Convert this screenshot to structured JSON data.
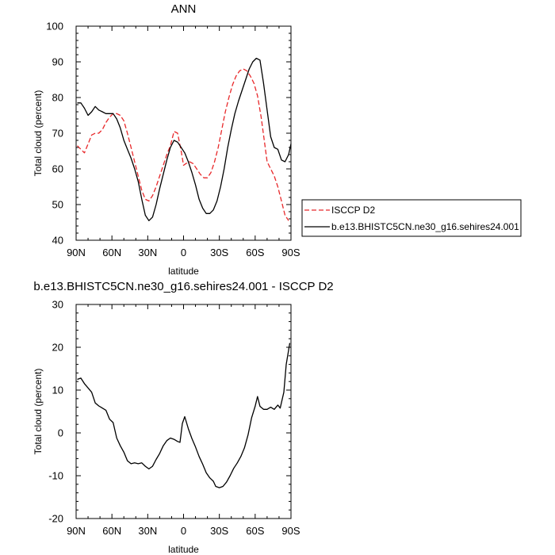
{
  "chart_data": [
    {
      "type": "line",
      "title": "ANN",
      "xlabel": "latitude",
      "ylabel": "Total cloud (percent)",
      "xlim": [
        90,
        -90
      ],
      "ylim": [
        40,
        100
      ],
      "x_ticks": [
        {
          "value": 90,
          "label": "90N"
        },
        {
          "value": 60,
          "label": "60N"
        },
        {
          "value": 30,
          "label": "30N"
        },
        {
          "value": 0,
          "label": "0"
        },
        {
          "value": -30,
          "label": "30S"
        },
        {
          "value": -60,
          "label": "60S"
        },
        {
          "value": -90,
          "label": "90S"
        }
      ],
      "y_ticks": [
        40,
        50,
        60,
        70,
        80,
        90,
        100
      ],
      "legend_position": "right",
      "series": [
        {
          "name": "ISCCP D2",
          "color": "#e8282a",
          "dash": "dashed",
          "points": [
            [
              89,
              66.5
            ],
            [
              86,
              65.5
            ],
            [
              83,
              64.5
            ],
            [
              80,
              67
            ],
            [
              77,
              69.5
            ],
            [
              74,
              70
            ],
            [
              71,
              70
            ],
            [
              68,
              71
            ],
            [
              65,
              73
            ],
            [
              62,
              74.5
            ],
            [
              59,
              75.5
            ],
            [
              56,
              75.5
            ],
            [
              53,
              75
            ],
            [
              50,
              73.5
            ],
            [
              47,
              70
            ],
            [
              44,
              66
            ],
            [
              41,
              62
            ],
            [
              38,
              58
            ],
            [
              35,
              54
            ],
            [
              32,
              51.5
            ],
            [
              29,
              51
            ],
            [
              26,
              52.5
            ],
            [
              23,
              55
            ],
            [
              20,
              58
            ],
            [
              17,
              61
            ],
            [
              14,
              64
            ],
            [
              11,
              66.5
            ],
            [
              8,
              70.5
            ],
            [
              5,
              70
            ],
            [
              2,
              65
            ],
            [
              0,
              61
            ],
            [
              -2,
              61.5
            ],
            [
              -5,
              62
            ],
            [
              -8,
              61.5
            ],
            [
              -11,
              60
            ],
            [
              -14,
              58.5
            ],
            [
              -17,
              57.5
            ],
            [
              -20,
              57.5
            ],
            [
              -23,
              59
            ],
            [
              -26,
              62
            ],
            [
              -29,
              66
            ],
            [
              -32,
              71
            ],
            [
              -35,
              76
            ],
            [
              -38,
              80
            ],
            [
              -41,
              83.5
            ],
            [
              -44,
              86
            ],
            [
              -47,
              87.5
            ],
            [
              -50,
              88
            ],
            [
              -53,
              87.5
            ],
            [
              -56,
              86
            ],
            [
              -59,
              84
            ],
            [
              -62,
              80.5
            ],
            [
              -65,
              74.5
            ],
            [
              -68,
              67
            ],
            [
              -70,
              62
            ],
            [
              -73,
              60
            ],
            [
              -76,
              58
            ],
            [
              -79,
              55
            ],
            [
              -82,
              51
            ],
            [
              -85,
              47
            ],
            [
              -88,
              45.5
            ]
          ]
        },
        {
          "name": "b.e13.BHISTC5CN.ne30_g16.sehires24.001",
          "color": "#000000",
          "dash": "solid",
          "points": [
            [
              89,
              78.5
            ],
            [
              86,
              78.5
            ],
            [
              83,
              77
            ],
            [
              80,
              75
            ],
            [
              77,
              76
            ],
            [
              74,
              77.5
            ],
            [
              71,
              76.5
            ],
            [
              68,
              76
            ],
            [
              65,
              75.5
            ],
            [
              62,
              75.5
            ],
            [
              59,
              75.5
            ],
            [
              56,
              74
            ],
            [
              53,
              71.5
            ],
            [
              50,
              68
            ],
            [
              47,
              65.5
            ],
            [
              44,
              63
            ],
            [
              41,
              60
            ],
            [
              38,
              56.5
            ],
            [
              35,
              51.5
            ],
            [
              32,
              47
            ],
            [
              29,
              45.5
            ],
            [
              26,
              46.5
            ],
            [
              23,
              50
            ],
            [
              20,
              54.5
            ],
            [
              17,
              58.5
            ],
            [
              14,
              62.5
            ],
            [
              11,
              66
            ],
            [
              8,
              68
            ],
            [
              5,
              67.5
            ],
            [
              2,
              66
            ],
            [
              -1,
              64.5
            ],
            [
              -4,
              62
            ],
            [
              -7,
              59
            ],
            [
              -10,
              55.5
            ],
            [
              -13,
              51.5
            ],
            [
              -16,
              49
            ],
            [
              -19,
              47.5
            ],
            [
              -22,
              47.5
            ],
            [
              -25,
              48.5
            ],
            [
              -28,
              51
            ],
            [
              -31,
              55
            ],
            [
              -34,
              60
            ],
            [
              -37,
              66
            ],
            [
              -40,
              71
            ],
            [
              -43,
              75.5
            ],
            [
              -46,
              79
            ],
            [
              -49,
              82
            ],
            [
              -52,
              85
            ],
            [
              -55,
              88
            ],
            [
              -58,
              90
            ],
            [
              -61,
              91
            ],
            [
              -64,
              90.5
            ],
            [
              -67,
              84
            ],
            [
              -70,
              76.5
            ],
            [
              -73,
              69
            ],
            [
              -76,
              66
            ],
            [
              -79,
              65.5
            ],
            [
              -82,
              62.5
            ],
            [
              -85,
              62
            ],
            [
              -88,
              64
            ],
            [
              -90,
              67
            ]
          ]
        }
      ]
    },
    {
      "type": "line",
      "title": "b.e13.BHISTC5CN.ne30_g16.sehires24.001 - ISCCP D2",
      "xlabel": "latitude",
      "ylabel": "Total cloud (percent)",
      "xlim": [
        90,
        -90
      ],
      "ylim": [
        -20,
        30
      ],
      "x_ticks": [
        {
          "value": 90,
          "label": "90N"
        },
        {
          "value": 60,
          "label": "60N"
        },
        {
          "value": 30,
          "label": "30N"
        },
        {
          "value": 0,
          "label": "0"
        },
        {
          "value": -30,
          "label": "30S"
        },
        {
          "value": -60,
          "label": "60S"
        },
        {
          "value": -90,
          "label": "90S"
        }
      ],
      "y_ticks": [
        -20,
        -10,
        0,
        10,
        20,
        30
      ],
      "series": [
        {
          "color": "#000000",
          "dash": "solid",
          "points": [
            [
              89,
              12.5
            ],
            [
              86,
              12.8
            ],
            [
              83,
              11.5
            ],
            [
              80,
              10.5
            ],
            [
              77,
              9.5
            ],
            [
              74,
              7
            ],
            [
              71,
              6.3
            ],
            [
              68,
              5.8
            ],
            [
              65,
              5.3
            ],
            [
              62,
              3.2
            ],
            [
              59,
              2.4
            ],
            [
              56,
              -1.2
            ],
            [
              53,
              -3
            ],
            [
              50,
              -4.5
            ],
            [
              47,
              -6.5
            ],
            [
              44,
              -7.2
            ],
            [
              41,
              -7.0
            ],
            [
              38,
              -7.2
            ],
            [
              35,
              -7.0
            ],
            [
              32,
              -7.8
            ],
            [
              29,
              -8.4
            ],
            [
              26,
              -7.8
            ],
            [
              23,
              -6.2
            ],
            [
              20,
              -4.8
            ],
            [
              17,
              -3.0
            ],
            [
              14,
              -1.8
            ],
            [
              11,
              -1.2
            ],
            [
              8,
              -1.5
            ],
            [
              5,
              -2.0
            ],
            [
              3,
              -2.2
            ],
            [
              1,
              2.2
            ],
            [
              -1,
              3.8
            ],
            [
              -4,
              1.0
            ],
            [
              -7,
              -1.3
            ],
            [
              -10,
              -3.3
            ],
            [
              -13,
              -5.5
            ],
            [
              -16,
              -7.3
            ],
            [
              -19,
              -9.3
            ],
            [
              -22,
              -10.5
            ],
            [
              -25,
              -11.3
            ],
            [
              -27,
              -12.5
            ],
            [
              -30,
              -12.8
            ],
            [
              -33,
              -12.5
            ],
            [
              -36,
              -11.5
            ],
            [
              -39,
              -10.0
            ],
            [
              -42,
              -8.3
            ],
            [
              -45,
              -7.0
            ],
            [
              -48,
              -5.5
            ],
            [
              -51,
              -3.5
            ],
            [
              -54,
              -0.5
            ],
            [
              -57,
              3.5
            ],
            [
              -60,
              6.2
            ],
            [
              -62,
              8.5
            ],
            [
              -64,
              6.2
            ],
            [
              -67,
              5.5
            ],
            [
              -70,
              5.5
            ],
            [
              -73,
              6.0
            ],
            [
              -76,
              5.5
            ],
            [
              -79,
              6.5
            ],
            [
              -81,
              5.8
            ],
            [
              -84,
              9.5
            ],
            [
              -86,
              16.0
            ],
            [
              -89,
              21.0
            ]
          ]
        }
      ]
    }
  ]
}
